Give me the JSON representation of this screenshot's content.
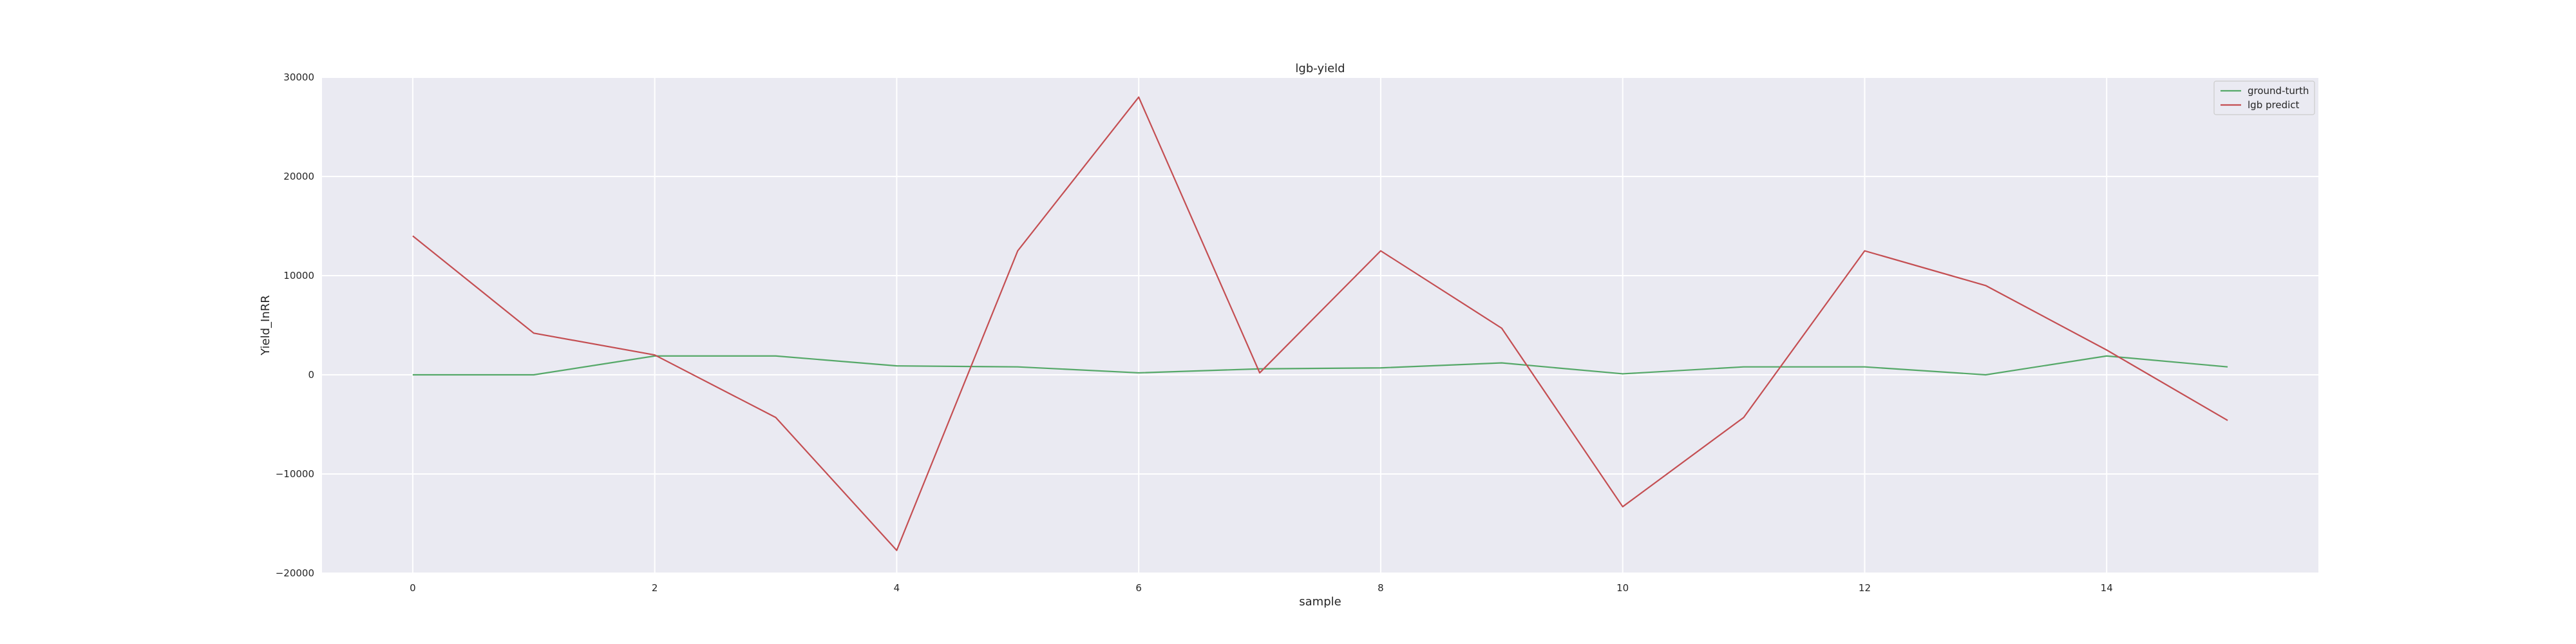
{
  "chart_data": {
    "type": "line",
    "title": "lgb-yield",
    "xlabel": "sample",
    "ylabel": "Yield_InRR",
    "x": [
      0,
      1,
      2,
      3,
      4,
      5,
      6,
      7,
      8,
      9,
      10,
      11,
      12,
      13,
      14,
      15
    ],
    "xlim": [
      -0.75,
      15.75
    ],
    "ylim": [
      -20000,
      30000
    ],
    "xticks": [
      0,
      2,
      4,
      6,
      8,
      10,
      12,
      14
    ],
    "yticks": [
      -20000,
      -10000,
      0,
      10000,
      20000,
      30000
    ],
    "xtick_labels": [
      "0",
      "2",
      "4",
      "6",
      "8",
      "10",
      "12",
      "14"
    ],
    "ytick_labels": [
      "−20000",
      "−10000",
      "0",
      "10000",
      "20000",
      "30000"
    ],
    "grid": true,
    "legend_position": "top-right",
    "series": [
      {
        "name": "ground-turth",
        "color": "#55a868",
        "values": [
          0,
          0,
          1900,
          1900,
          900,
          800,
          200,
          600,
          700,
          1200,
          100,
          800,
          800,
          0,
          1900,
          800
        ]
      },
      {
        "name": "lgb predict",
        "color": "#c44e52",
        "values": [
          14000,
          4200,
          2000,
          -4300,
          -17700,
          12500,
          28000,
          200,
          12500,
          4700,
          -13300,
          -4300,
          12500,
          9000,
          2500,
          -4600
        ]
      }
    ]
  }
}
